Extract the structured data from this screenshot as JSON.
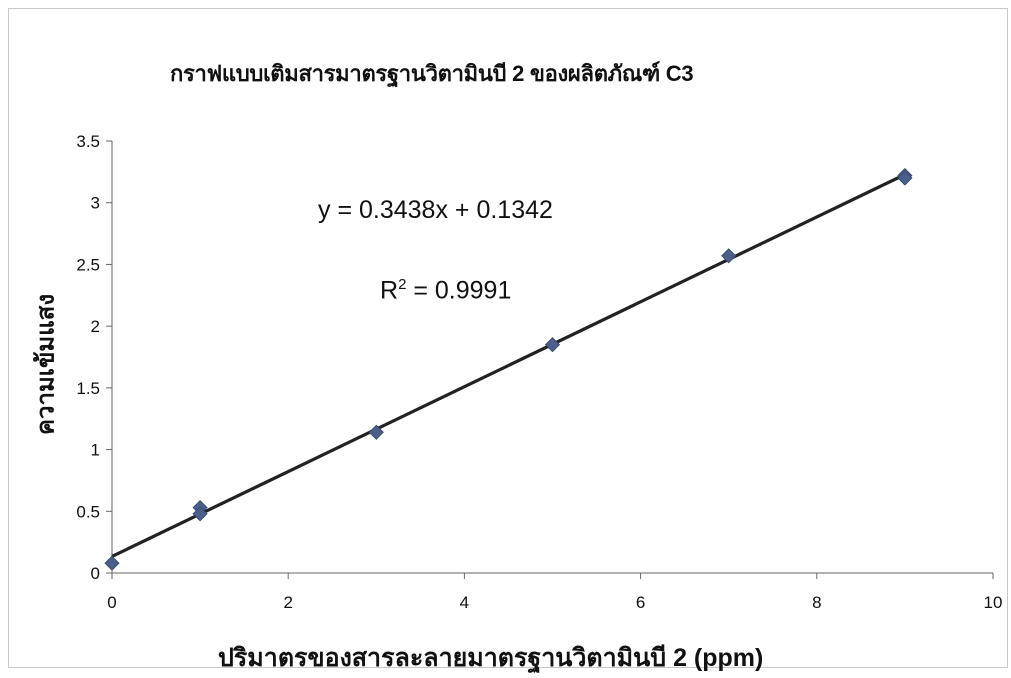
{
  "chart_data": {
    "type": "scatter",
    "title": "กราฟแบบเติมสารมาตรฐานวิตามินบี 2 ของผลิตภัณฑ์ C3",
    "xlabel": "ปริมาตรของสารละลายมาตรฐานวิตามินบี 2 (ppm)",
    "ylabel": "ความเข้มแสง",
    "xlim": [
      0,
      10
    ],
    "ylim": [
      0,
      3.5
    ],
    "x_ticks": [
      "0",
      "2",
      "4",
      "6",
      "8",
      "10"
    ],
    "y_ticks": [
      "0",
      "0.5",
      "1",
      "1.5",
      "2",
      "2.5",
      "3",
      "3.5"
    ],
    "grid": false,
    "series": [
      {
        "x": [
          0,
          1,
          1,
          3,
          5,
          7,
          9,
          9
        ],
        "y": [
          0.08,
          0.53,
          0.48,
          1.14,
          1.85,
          2.57,
          3.22,
          3.2
        ],
        "marker": "diamond",
        "color": "#4a5f8a"
      }
    ],
    "trendline": {
      "slope": 0.3438,
      "intercept": 0.1342,
      "x_range": [
        0,
        9
      ],
      "color": "#222222",
      "equation": "y = 0.3438x + 0.1342",
      "r2_label": "R",
      "r2_exp": "2",
      "r2_value": " = 0.9991"
    }
  }
}
